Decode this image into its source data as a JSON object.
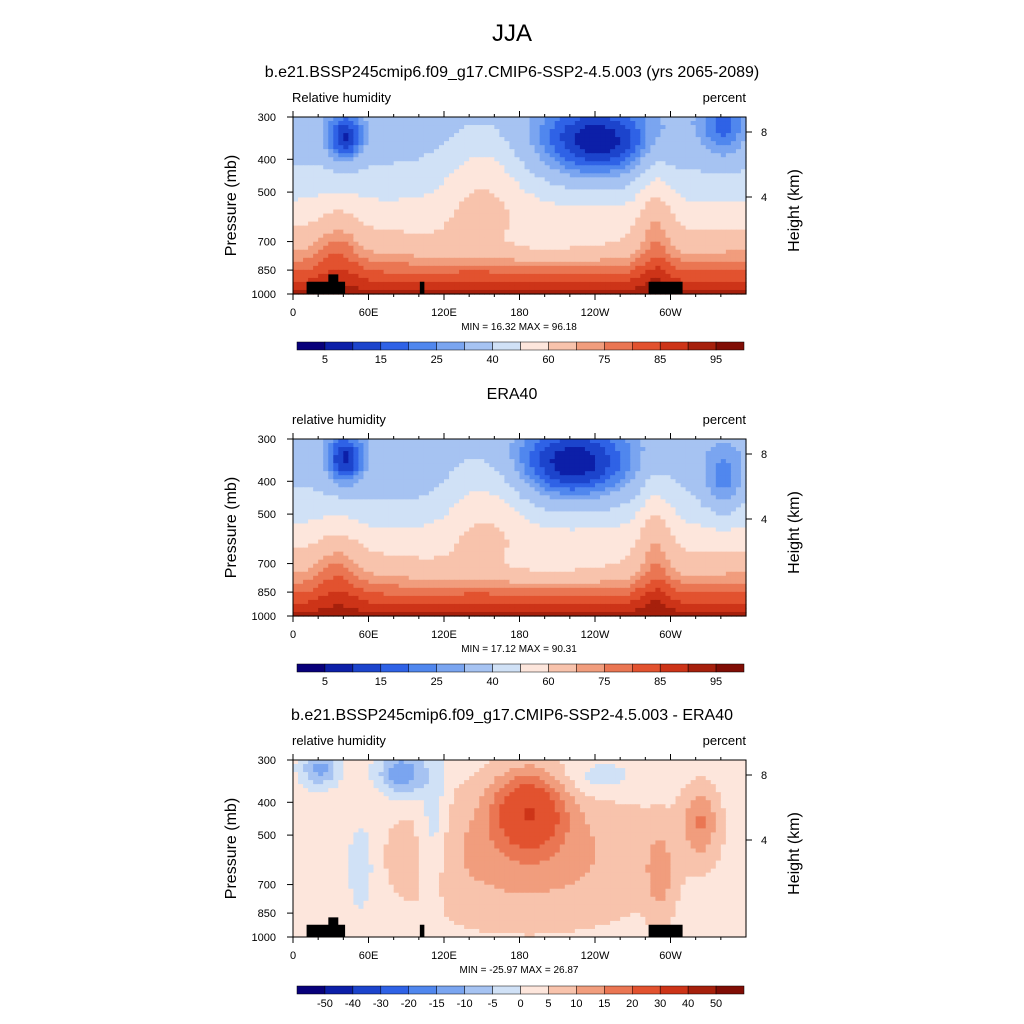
{
  "figure": {
    "title": "JJA"
  },
  "chart_data": [
    {
      "type": "contour",
      "title": "b.e21.BSSP245cmip6.f09_g17.CMIP6-SSP2-4.5.003 (yrs 2065-2089)",
      "left_label": "Relative humidity",
      "right_label": "percent",
      "ylabel": "Pressure (mb)",
      "ylabel_right": "Height (km)",
      "xticks": [
        "0",
        "60E",
        "120E",
        "180",
        "120W",
        "60W"
      ],
      "yticks": [
        "300",
        "400",
        "500",
        "700",
        "850",
        "1000"
      ],
      "yticks_right": [
        "8",
        "4"
      ],
      "stats": "MIN =  16.32  MAX =  96.18",
      "colorbar_labels": [
        "5",
        "15",
        "25",
        "40",
        "60",
        "75",
        "85",
        "95"
      ],
      "colorbar_levels": 16
    },
    {
      "type": "contour",
      "title": "ERA40",
      "left_label": "relative humidity",
      "right_label": "percent",
      "ylabel": "Pressure (mb)",
      "ylabel_right": "Height (km)",
      "xticks": [
        "0",
        "60E",
        "120E",
        "180",
        "120W",
        "60W"
      ],
      "yticks": [
        "300",
        "400",
        "500",
        "700",
        "850",
        "1000"
      ],
      "yticks_right": [
        "8",
        "4"
      ],
      "stats": "MIN =  17.12  MAX =  90.31",
      "colorbar_labels": [
        "5",
        "15",
        "25",
        "40",
        "60",
        "75",
        "85",
        "95"
      ],
      "colorbar_levels": 16
    },
    {
      "type": "contour",
      "title": "b.e21.BSSP245cmip6.f09_g17.CMIP6-SSP2-4.5.003 - ERA40",
      "left_label": "relative humidity",
      "right_label": "percent",
      "ylabel": "Pressure (mb)",
      "ylabel_right": "Height (km)",
      "xticks": [
        "0",
        "60E",
        "120E",
        "180",
        "120W",
        "60W"
      ],
      "yticks": [
        "300",
        "400",
        "500",
        "700",
        "850",
        "1000"
      ],
      "yticks_right": [
        "8",
        "4"
      ],
      "stats": "MIN = -25.97  MAX =  26.87",
      "colorbar_labels": [
        "-50",
        "-40",
        "-30",
        "-20",
        "-15",
        "-10",
        "-5",
        "0",
        "5",
        "10",
        "15",
        "20",
        "30",
        "40",
        "50"
      ],
      "colorbar_levels": 16
    }
  ],
  "colors": {
    "levels": [
      "#08007a",
      "#0c1fa8",
      "#1c44cc",
      "#2f62e6",
      "#5087ee",
      "#7aa5f0",
      "#a6c3f2",
      "#d0e1f6",
      "#fde6dc",
      "#f8c3ac",
      "#f19d7d",
      "#ea7653",
      "#e2522f",
      "#cd3418",
      "#a6200c",
      "#800d05"
    ]
  }
}
